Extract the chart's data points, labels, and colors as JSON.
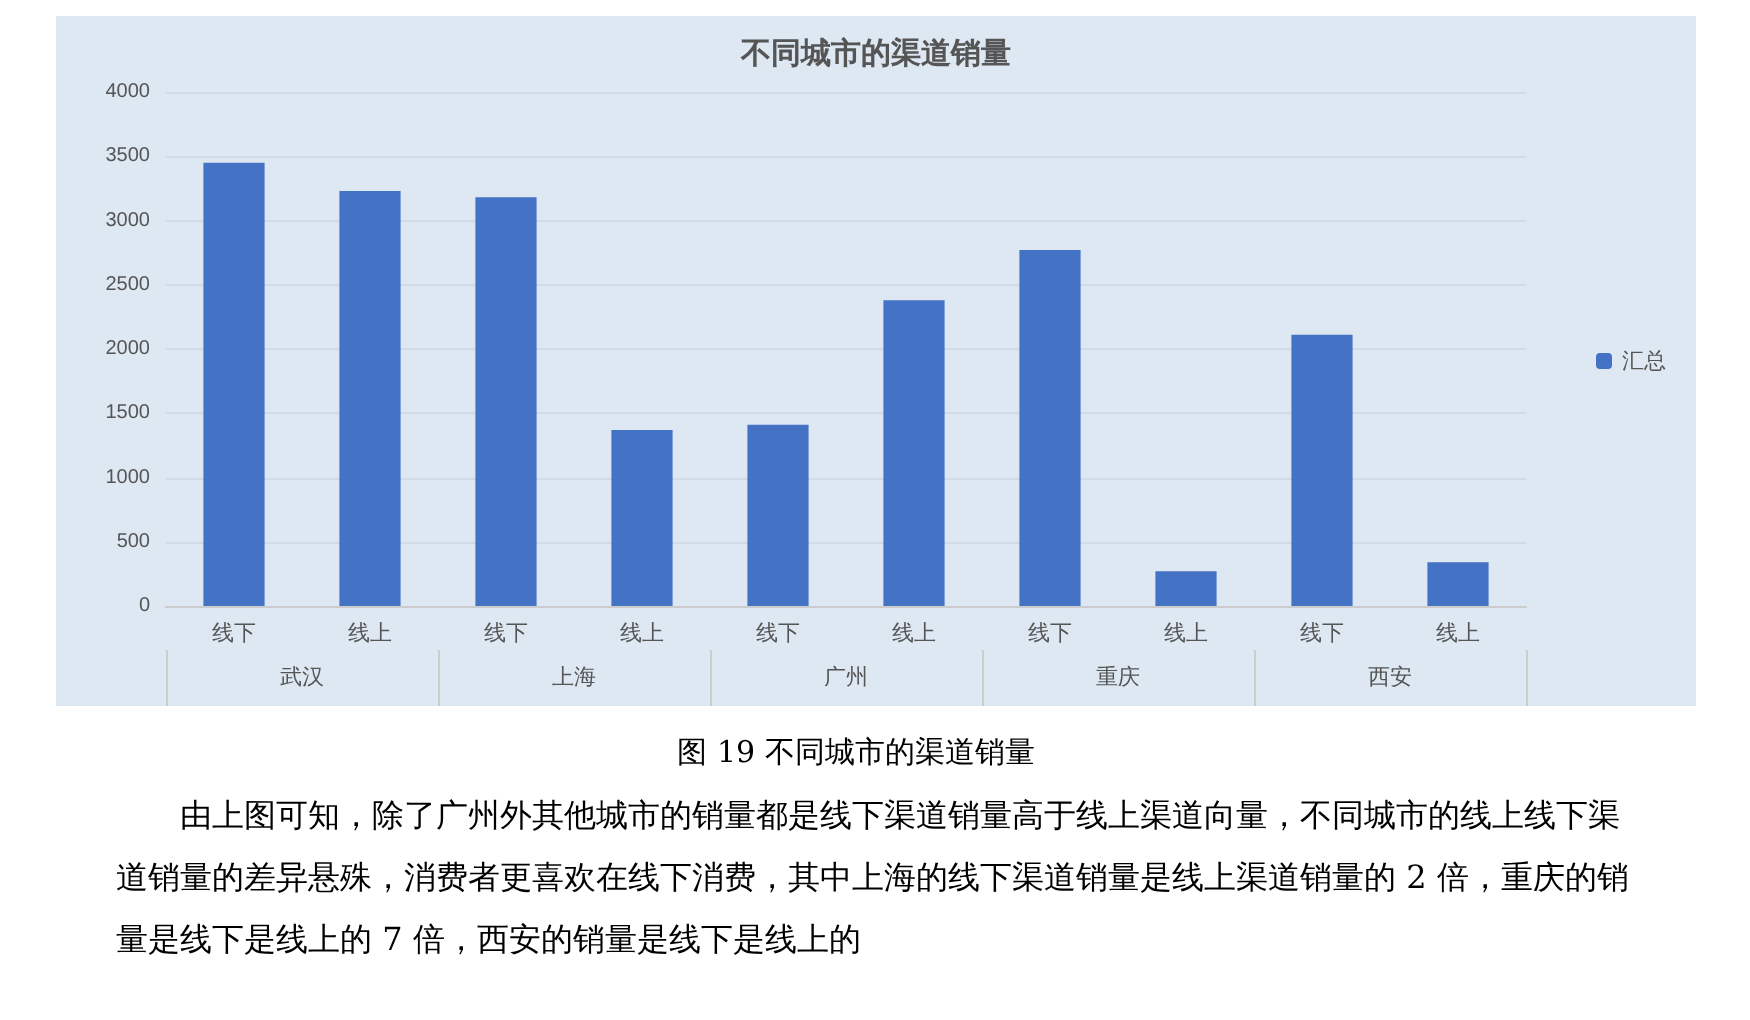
{
  "chart_data": {
    "type": "bar",
    "title": "不同城市的渠道销量",
    "categories": [
      "线下",
      "线上",
      "线下",
      "线上",
      "线下",
      "线上",
      "线下",
      "线上",
      "线下",
      "线上"
    ],
    "series": [
      {
        "name": "汇总",
        "color": "#4472c4",
        "values": [
          3450,
          3230,
          3180,
          1370,
          1410,
          2380,
          2770,
          270,
          2110,
          340
        ]
      }
    ],
    "ylim": [
      0,
      4000
    ],
    "yticks": [
      0,
      500,
      1000,
      1500,
      2000,
      2500,
      3000,
      3500,
      4000
    ],
    "grid": "y",
    "legend": "right",
    "annotations": [
      "武汉",
      "上海",
      "广州",
      "重庆",
      "西安",
      "图 19 不同城市的渠道销量",
      "由上图可知，除了广州外其他城市的销量都是线下渠道销量高于线上渠道向量，不同城市的线上线下渠道销量的差异悬殊，消费者更喜欢在线下消费，其中上海的线下渠道销量是线上渠道销量的 2 倍，重庆的销量是线下是线上的 7 倍，西安的销量是线下是线上的"
    ]
  }
}
